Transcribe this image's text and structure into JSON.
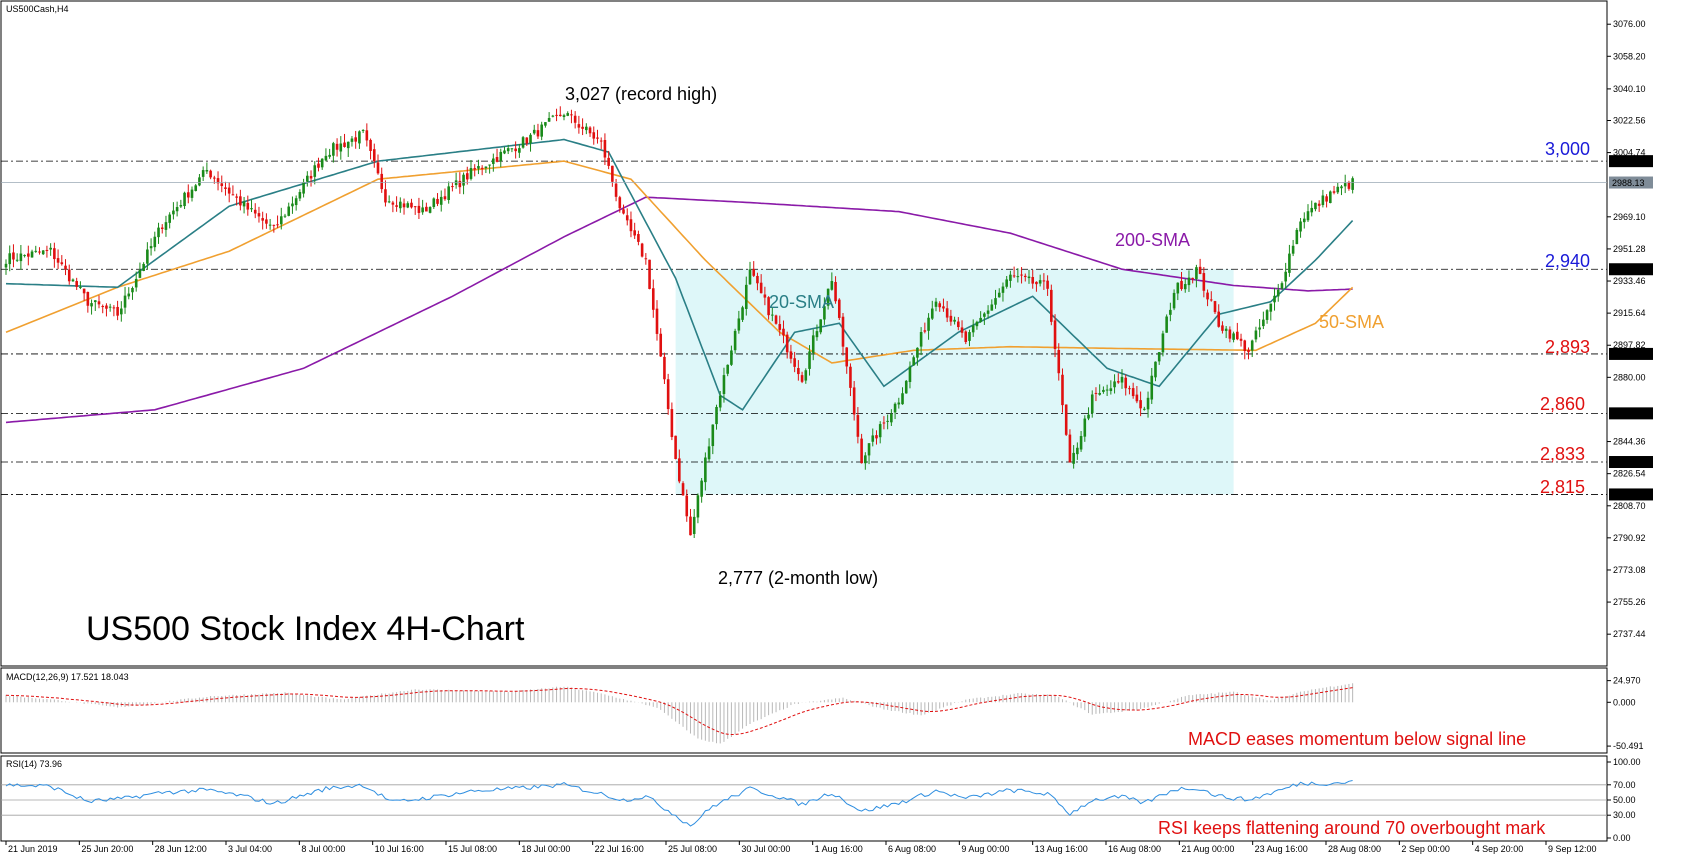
{
  "chart_data": {
    "type": "candlestick",
    "symbol_label": "US500Cash,H4",
    "title": "US500 Stock Index 4H-Chart",
    "price_axis": {
      "range": [
        2722,
        3085
      ],
      "ticks": [
        "3076.00",
        "3058.20",
        "3040.10",
        "3022.56",
        "3004.74",
        "2969.10",
        "2951.28",
        "2933.46",
        "2915.64",
        "2897.82",
        "2880.00",
        "2844.36",
        "2826.54",
        "2808.70",
        "2790.92",
        "2773.08",
        "2755.26",
        "2737.44"
      ],
      "labeled_levels": [
        {
          "value": 3000,
          "axis_label": "3000.00"
        },
        {
          "value": 2940,
          "axis_label": "2940.00"
        },
        {
          "value": 2893,
          "axis_label": "2893.00"
        },
        {
          "value": 2860,
          "axis_label": "2860.00"
        },
        {
          "value": 2833,
          "axis_label": "2833.00"
        },
        {
          "value": 2815,
          "axis_label": "2815.00"
        }
      ],
      "current_price_label": "2988.13"
    },
    "time_axis": [
      "21 Jun 2019",
      "25 Jun 20:00",
      "28 Jun 12:00",
      "3 Jul 04:00",
      "8 Jul 00:00",
      "10 Jul 16:00",
      "15 Jul 08:00",
      "18 Jul 00:00",
      "22 Jul 16:00",
      "25 Jul 08:00",
      "30 Jul 00:00",
      "1 Aug 16:00",
      "6 Aug 08:00",
      "9 Aug 00:00",
      "13 Aug 16:00",
      "16 Aug 08:00",
      "21 Aug 00:00",
      "23 Aug 16:00",
      "28 Aug 08:00",
      "2 Sep 00:00",
      "4 Sep 20:00",
      "9 Sep 12:00"
    ],
    "annotations": {
      "record_high": "3,027 (record high)",
      "two_month_low": "2,777 (2-month low)",
      "sma20": "20-SMA",
      "sma50": "50-SMA",
      "sma200": "200-SMA",
      "level_3000": "3,000",
      "level_2940": "2,940",
      "level_2893": "2,893",
      "level_2860": "2,860",
      "level_2833": "2,833",
      "level_2815": "2,815"
    },
    "price_anchors": [
      {
        "bar": 0,
        "close": 2946
      },
      {
        "bar": 12,
        "close": 2950
      },
      {
        "bar": 22,
        "close": 2922
      },
      {
        "bar": 30,
        "close": 2915
      },
      {
        "bar": 42,
        "close": 2965
      },
      {
        "bar": 54,
        "close": 2995
      },
      {
        "bar": 64,
        "close": 2975
      },
      {
        "bar": 72,
        "close": 2962
      },
      {
        "bar": 86,
        "close": 3005
      },
      {
        "bar": 96,
        "close": 3015
      },
      {
        "bar": 102,
        "close": 2980
      },
      {
        "bar": 112,
        "close": 2972
      },
      {
        "bar": 126,
        "close": 2995
      },
      {
        "bar": 140,
        "close": 3012
      },
      {
        "bar": 150,
        "close": 3027
      },
      {
        "bar": 160,
        "close": 3010
      },
      {
        "bar": 166,
        "close": 2968
      },
      {
        "bar": 172,
        "close": 2945
      },
      {
        "bar": 180,
        "close": 2835
      },
      {
        "bar": 184,
        "close": 2792
      },
      {
        "bar": 190,
        "close": 2855
      },
      {
        "bar": 200,
        "close": 2938
      },
      {
        "bar": 208,
        "close": 2905
      },
      {
        "bar": 214,
        "close": 2880
      },
      {
        "bar": 222,
        "close": 2935
      },
      {
        "bar": 230,
        "close": 2835
      },
      {
        "bar": 240,
        "close": 2868
      },
      {
        "bar": 250,
        "close": 2925
      },
      {
        "bar": 258,
        "close": 2900
      },
      {
        "bar": 270,
        "close": 2936
      },
      {
        "bar": 280,
        "close": 2930
      },
      {
        "bar": 286,
        "close": 2830
      },
      {
        "bar": 292,
        "close": 2868
      },
      {
        "bar": 300,
        "close": 2878
      },
      {
        "bar": 306,
        "close": 2862
      },
      {
        "bar": 314,
        "close": 2928
      },
      {
        "bar": 320,
        "close": 2940
      },
      {
        "bar": 326,
        "close": 2910
      },
      {
        "bar": 334,
        "close": 2895
      },
      {
        "bar": 342,
        "close": 2928
      },
      {
        "bar": 348,
        "close": 2968
      },
      {
        "bar": 356,
        "close": 2982
      },
      {
        "bar": 362,
        "close": 2988
      }
    ],
    "sma_anchors": {
      "sma20": [
        [
          0,
          2932
        ],
        [
          30,
          2930
        ],
        [
          60,
          2975
        ],
        [
          100,
          3000
        ],
        [
          150,
          3012
        ],
        [
          162,
          3005
        ],
        [
          180,
          2935
        ],
        [
          192,
          2870
        ],
        [
          198,
          2862
        ],
        [
          212,
          2905
        ],
        [
          224,
          2910
        ],
        [
          236,
          2875
        ],
        [
          256,
          2905
        ],
        [
          276,
          2925
        ],
        [
          296,
          2885
        ],
        [
          310,
          2875
        ],
        [
          326,
          2915
        ],
        [
          340,
          2922
        ],
        [
          352,
          2945
        ],
        [
          362,
          2967
        ]
      ],
      "sma50": [
        [
          0,
          2905
        ],
        [
          30,
          2930
        ],
        [
          60,
          2950
        ],
        [
          100,
          2990
        ],
        [
          150,
          3000
        ],
        [
          168,
          2990
        ],
        [
          188,
          2945
        ],
        [
          208,
          2905
        ],
        [
          222,
          2888
        ],
        [
          244,
          2895
        ],
        [
          270,
          2897
        ],
        [
          300,
          2896
        ],
        [
          336,
          2895
        ],
        [
          352,
          2910
        ],
        [
          362,
          2930
        ]
      ],
      "sma200": [
        [
          0,
          2855
        ],
        [
          40,
          2862
        ],
        [
          80,
          2885
        ],
        [
          120,
          2925
        ],
        [
          150,
          2958
        ],
        [
          172,
          2980
        ],
        [
          200,
          2977
        ],
        [
          240,
          2972
        ],
        [
          270,
          2960
        ],
        [
          300,
          2940
        ],
        [
          330,
          2931
        ],
        [
          350,
          2928
        ],
        [
          362,
          2929
        ]
      ]
    },
    "box": {
      "from_bar": 180,
      "to_bar": 330,
      "high": 2940,
      "low": 2815
    },
    "macd": {
      "label": "MACD(12,26,9) 17.521 18.043",
      "ticks": [
        "24.970",
        "0.000",
        "-50.491"
      ],
      "range": [
        -55,
        28
      ],
      "note": "MACD eases momentum below signal line",
      "anchors": [
        [
          0,
          8
        ],
        [
          15,
          2
        ],
        [
          30,
          -6
        ],
        [
          55,
          7
        ],
        [
          75,
          11
        ],
        [
          90,
          3
        ],
        [
          110,
          15
        ],
        [
          135,
          12
        ],
        [
          150,
          18
        ],
        [
          160,
          10
        ],
        [
          175,
          -6
        ],
        [
          186,
          -42
        ],
        [
          192,
          -48
        ],
        [
          200,
          -25
        ],
        [
          212,
          -2
        ],
        [
          225,
          5
        ],
        [
          236,
          -8
        ],
        [
          246,
          -15
        ],
        [
          258,
          3
        ],
        [
          272,
          10
        ],
        [
          282,
          8
        ],
        [
          292,
          -14
        ],
        [
          304,
          -9
        ],
        [
          318,
          8
        ],
        [
          330,
          12
        ],
        [
          340,
          2
        ],
        [
          350,
          14
        ],
        [
          362,
          22
        ]
      ]
    },
    "rsi": {
      "label": "RSI(14) 73.96",
      "ticks": [
        "100.00",
        "70.00",
        "50.00",
        "30.00",
        "0.00"
      ],
      "range": [
        0,
        100
      ],
      "levels": [
        70,
        50,
        30
      ],
      "note": "RSI keeps flattening around 70 overbought mark",
      "anchors": [
        [
          0,
          70
        ],
        [
          12,
          68
        ],
        [
          22,
          48
        ],
        [
          32,
          52
        ],
        [
          42,
          60
        ],
        [
          54,
          63
        ],
        [
          64,
          55
        ],
        [
          72,
          45
        ],
        [
          86,
          65
        ],
        [
          96,
          70
        ],
        [
          104,
          47
        ],
        [
          112,
          52
        ],
        [
          126,
          62
        ],
        [
          140,
          66
        ],
        [
          150,
          70
        ],
        [
          160,
          58
        ],
        [
          166,
          50
        ],
        [
          172,
          55
        ],
        [
          180,
          30
        ],
        [
          184,
          16
        ],
        [
          190,
          42
        ],
        [
          200,
          65
        ],
        [
          208,
          54
        ],
        [
          214,
          44
        ],
        [
          222,
          60
        ],
        [
          230,
          35
        ],
        [
          240,
          46
        ],
        [
          250,
          62
        ],
        [
          258,
          52
        ],
        [
          270,
          63
        ],
        [
          280,
          58
        ],
        [
          286,
          32
        ],
        [
          292,
          50
        ],
        [
          300,
          54
        ],
        [
          306,
          46
        ],
        [
          314,
          64
        ],
        [
          320,
          66
        ],
        [
          326,
          55
        ],
        [
          334,
          50
        ],
        [
          342,
          62
        ],
        [
          348,
          72
        ],
        [
          356,
          72
        ],
        [
          362,
          74
        ]
      ]
    }
  }
}
